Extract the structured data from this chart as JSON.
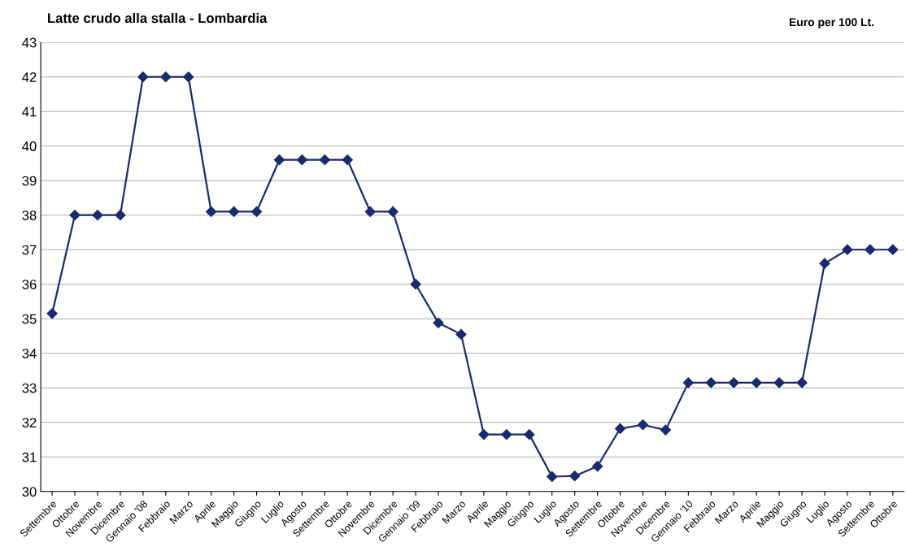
{
  "chart_data": {
    "type": "line",
    "title": "Latte crudo alla stalla - Lombardia",
    "annotations": [
      "Euro per 100 Lt."
    ],
    "categories": [
      "Settembre",
      "Ottobre",
      "Novembre",
      "Dicembre",
      "Gennaio '08",
      "Febbraio",
      "Marzo",
      "Aprile",
      "Maggio",
      "Giugno",
      "Luglio",
      "Agosto",
      "Settembre",
      "Ottobre",
      "Novembre",
      "Dicembre",
      "Gennaio '09",
      "Febbraio",
      "Marzo",
      "Aprile",
      "Maggio",
      "Giugno",
      "Luglio",
      "Agosto",
      "Settembre",
      "Ottobre",
      "Novembre",
      "Dicembre",
      "Gennaio '10",
      "Febbraio",
      "Marzo",
      "Aprile",
      "Maggio",
      "Giugno",
      "Luglio",
      "Agosto",
      "Settembre",
      "Ottobre"
    ],
    "series": [
      {
        "color": "#1a2a6c",
        "values": [
          35.15,
          38,
          38,
          38,
          42,
          42,
          42,
          38.1,
          38.1,
          38.1,
          39.6,
          39.6,
          39.6,
          39.6,
          38.1,
          38.1,
          36.0,
          34.88,
          34.55,
          31.65,
          31.65,
          31.65,
          30.43,
          30.45,
          30.73,
          31.82,
          31.93,
          31.78,
          33.15,
          33.15,
          33.15,
          33.15,
          33.15,
          33.15,
          36.6,
          37.0,
          37.0,
          37.0
        ]
      }
    ],
    "ylim": [
      30,
      43
    ],
    "yticks": [
      30,
      31,
      32,
      33,
      34,
      35,
      36,
      37,
      38,
      39,
      40,
      41,
      42,
      43
    ],
    "grid": "y",
    "marker": "diamond",
    "line_style": "solid",
    "legend": false
  }
}
